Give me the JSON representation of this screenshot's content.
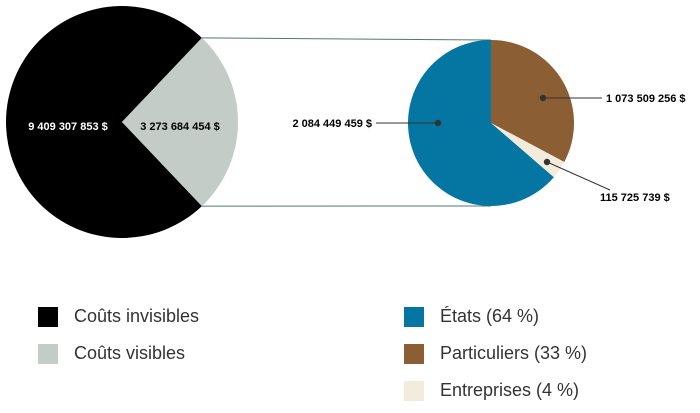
{
  "chart_data": [
    {
      "type": "pie",
      "slices": [
        {
          "label": "Coûts invisibles",
          "value": 9409307853,
          "value_label": "9 409 307 853 $",
          "color": "#000000"
        },
        {
          "label": "Coûts visibles",
          "value": 3273684454,
          "value_label": "3 273 684 454 $",
          "color": "#c3ccc6"
        }
      ]
    },
    {
      "type": "pie",
      "slices": [
        {
          "label": "États (64 %)",
          "value": 2084449459,
          "value_label": "2 084 449 459 $",
          "color": "#0476a1"
        },
        {
          "label": "Particuliers (33 %)",
          "value": 1073509256,
          "value_label": "1 073 509 256 $",
          "color": "#8b5e34"
        },
        {
          "label": "Entreprises (4 %)",
          "value": 115725739,
          "value_label": "115 725 739 $",
          "color": "#f3ecdc"
        }
      ]
    }
  ]
}
